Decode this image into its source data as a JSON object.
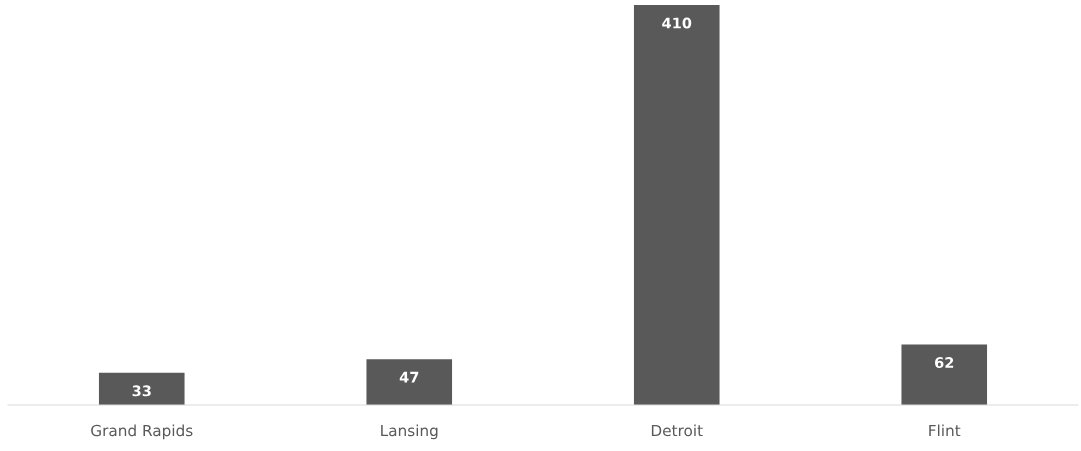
{
  "chart_data": {
    "type": "bar",
    "categories": [
      "Grand Rapids",
      "Lansing",
      "Detroit",
      "Flint"
    ],
    "values": [
      33,
      47,
      410,
      62
    ],
    "color": "#595959",
    "data_labels": true,
    "grid": false,
    "legend": false
  }
}
